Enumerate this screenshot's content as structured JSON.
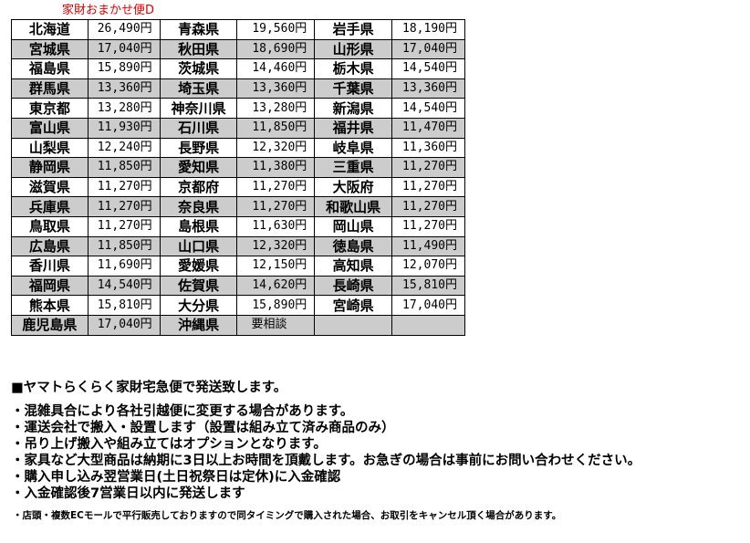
{
  "title": "家財おまかせ便D",
  "rows": [
    [
      [
        "北海道",
        "26,490円"
      ],
      [
        "青森県",
        "19,560円"
      ],
      [
        "岩手県",
        "18,190円"
      ]
    ],
    [
      [
        "宮城県",
        "17,040円"
      ],
      [
        "秋田県",
        "18,690円"
      ],
      [
        "山形県",
        "17,040円"
      ]
    ],
    [
      [
        "福島県",
        "15,890円"
      ],
      [
        "茨城県",
        "14,460円"
      ],
      [
        "栃木県",
        "14,540円"
      ]
    ],
    [
      [
        "群馬県",
        "13,360円"
      ],
      [
        "埼玉県",
        "13,360円"
      ],
      [
        "千葉県",
        "13,360円"
      ]
    ],
    [
      [
        "東京都",
        "13,280円"
      ],
      [
        "神奈川県",
        "13,280円"
      ],
      [
        "新潟県",
        "14,540円"
      ]
    ],
    [
      [
        "富山県",
        "11,930円"
      ],
      [
        "石川県",
        "11,850円"
      ],
      [
        "福井県",
        "11,470円"
      ]
    ],
    [
      [
        "山梨県",
        "12,240円"
      ],
      [
        "長野県",
        "12,320円"
      ],
      [
        "岐阜県",
        "11,360円"
      ]
    ],
    [
      [
        "静岡県",
        "11,850円"
      ],
      [
        "愛知県",
        "11,380円"
      ],
      [
        "三重県",
        "11,270円"
      ]
    ],
    [
      [
        "滋賀県",
        "11,270円"
      ],
      [
        "京都府",
        "11,270円"
      ],
      [
        "大阪府",
        "11,270円"
      ]
    ],
    [
      [
        "兵庫県",
        "11,270円"
      ],
      [
        "奈良県",
        "11,270円"
      ],
      [
        "和歌山県",
        "11,270円"
      ]
    ],
    [
      [
        "鳥取県",
        "11,270円"
      ],
      [
        "島根県",
        "11,630円"
      ],
      [
        "岡山県",
        "11,270円"
      ]
    ],
    [
      [
        "広島県",
        "11,850円"
      ],
      [
        "山口県",
        "12,320円"
      ],
      [
        "徳島県",
        "11,490円"
      ]
    ],
    [
      [
        "香川県",
        "11,690円"
      ],
      [
        "愛媛県",
        "12,150円"
      ],
      [
        "高知県",
        "12,070円"
      ]
    ],
    [
      [
        "福岡県",
        "14,540円"
      ],
      [
        "佐賀県",
        "14,620円"
      ],
      [
        "長崎県",
        "15,810円"
      ]
    ],
    [
      [
        "熊本県",
        "15,810円"
      ],
      [
        "大分県",
        "15,890円"
      ],
      [
        "宮崎県",
        "17,040円"
      ]
    ],
    [
      [
        "鹿児島県",
        "17,040円"
      ],
      [
        "沖縄県",
        "要相談"
      ],
      [
        "",
        ""
      ]
    ]
  ],
  "colors": {
    "title": "#e00000",
    "alt_row": "#cccccc"
  },
  "notes": {
    "heading": "■ヤマトらくらく家財宅急便で発送致します。",
    "bullets": [
      "・混雑具合により各社引越便に変更する場合があります。",
      "・運送会社で搬入・設置します（設置は組み立て済み商品のみ）",
      "・吊り上げ搬入や組み立てはオプションとなります。",
      "・家具など大型商品は納期に3日以上お時間を頂戴します。お急ぎの場合は事前にお問い合わせください。",
      "・購入申し込み翌営業日(土日祝祭日は定休)に入金確認",
      "・入金確認後7営業日以内に発送します"
    ],
    "footnote": "・店頭・複数ECモールで平行販売しておりますので同タイミングで購入された場合、お取引をキャンセル頂く場合があります。"
  }
}
